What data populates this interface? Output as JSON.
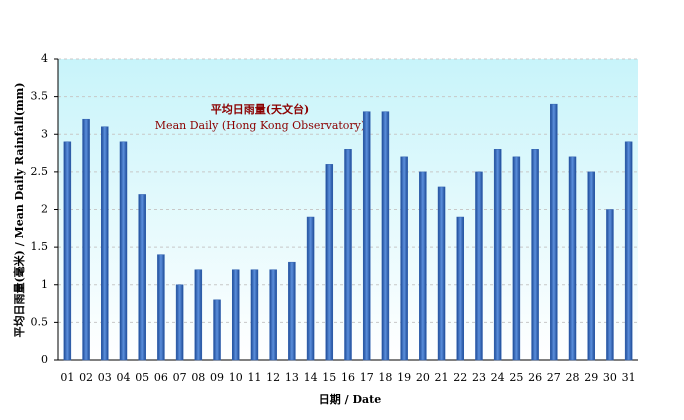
{
  "chart_data": {
    "type": "bar",
    "annotations": [
      "平均日雨量(天文台)",
      "Mean Daily (Hong Kong Observatory)"
    ],
    "x_label": "日期 / Date",
    "y_label": "平均日雨量(毫米) / Mean Daily Rainfall(mm)",
    "categories": [
      "01",
      "02",
      "03",
      "04",
      "05",
      "06",
      "07",
      "08",
      "09",
      "10",
      "11",
      "12",
      "13",
      "14",
      "15",
      "16",
      "17",
      "18",
      "19",
      "20",
      "21",
      "22",
      "23",
      "24",
      "25",
      "26",
      "27",
      "28",
      "29",
      "30",
      "31"
    ],
    "values": [
      2.9,
      3.2,
      3.1,
      2.9,
      2.2,
      1.4,
      1.0,
      1.2,
      0.8,
      1.2,
      1.2,
      1.2,
      1.3,
      1.9,
      2.6,
      2.8,
      3.3,
      3.3,
      2.7,
      2.5,
      2.3,
      1.9,
      2.5,
      2.8,
      2.7,
      2.8,
      3.4,
      2.7,
      2.5,
      2.0,
      2.9
    ],
    "color": "#2e5fae",
    "ylim": [
      0,
      4
    ],
    "yticks": [
      0,
      0.5,
      1,
      1.5,
      2,
      2.5,
      3,
      3.5,
      4
    ],
    "grid": true
  }
}
